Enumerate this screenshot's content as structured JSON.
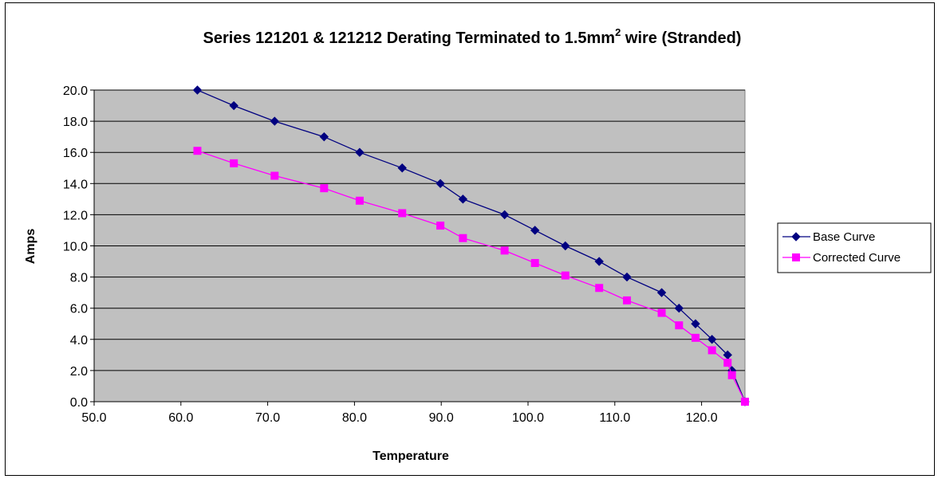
{
  "chart_data": {
    "type": "line",
    "title": "Series 121201 & 121212 Derating Terminated to 1.5mm",
    "title_superscript": "2",
    "title_suffix": " wire (Stranded)",
    "xlabel": "Temperature",
    "ylabel": "Amps",
    "xlim": [
      50,
      125
    ],
    "ylim": [
      0,
      20
    ],
    "xticks": [
      "50.0",
      "60.0",
      "70.0",
      "80.0",
      "90.0",
      "100.0",
      "110.0",
      "120.0"
    ],
    "yticks": [
      "0.0",
      "2.0",
      "4.0",
      "6.0",
      "8.0",
      "10.0",
      "12.0",
      "14.0",
      "16.0",
      "18.0",
      "20.0"
    ],
    "grid": "horizontal",
    "plot_background": "#c0c0c0",
    "legend_position": "right",
    "series": [
      {
        "name": "Base Curve",
        "color": "#000080",
        "marker": "diamond",
        "points": [
          [
            61.9,
            20
          ],
          [
            66.1,
            19
          ],
          [
            70.8,
            18
          ],
          [
            76.5,
            17
          ],
          [
            80.6,
            16
          ],
          [
            85.5,
            15
          ],
          [
            89.9,
            14
          ],
          [
            92.5,
            13
          ],
          [
            97.3,
            12
          ],
          [
            100.8,
            11
          ],
          [
            104.3,
            10
          ],
          [
            108.2,
            9
          ],
          [
            111.4,
            8
          ],
          [
            115.4,
            7
          ],
          [
            117.4,
            6
          ],
          [
            119.3,
            5
          ],
          [
            121.2,
            4
          ],
          [
            123.0,
            3
          ],
          [
            123.5,
            2
          ],
          [
            125.0,
            0
          ]
        ]
      },
      {
        "name": "Corrected Curve",
        "color": "#ff00ff",
        "marker": "square",
        "points": [
          [
            61.9,
            16.1
          ],
          [
            66.1,
            15.3
          ],
          [
            70.8,
            14.5
          ],
          [
            76.5,
            13.7
          ],
          [
            80.6,
            12.9
          ],
          [
            85.5,
            12.1
          ],
          [
            89.9,
            11.3
          ],
          [
            92.5,
            10.5
          ],
          [
            97.3,
            9.7
          ],
          [
            100.8,
            8.9
          ],
          [
            104.3,
            8.1
          ],
          [
            108.2,
            7.3
          ],
          [
            111.4,
            6.5
          ],
          [
            115.4,
            5.7
          ],
          [
            117.4,
            4.9
          ],
          [
            119.3,
            4.1
          ],
          [
            121.2,
            3.3
          ],
          [
            123.0,
            2.5
          ],
          [
            123.5,
            1.7
          ],
          [
            125.0,
            0
          ]
        ]
      }
    ]
  }
}
